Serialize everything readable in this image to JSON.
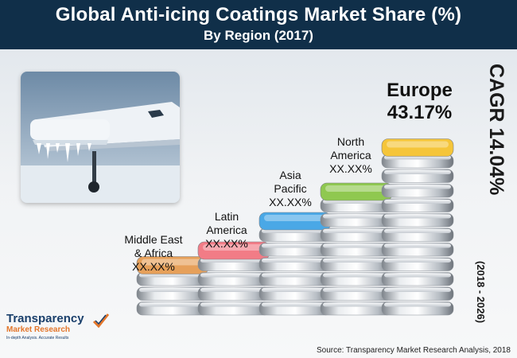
{
  "header": {
    "title": "Global Anti-icing Coatings Market Share (%)",
    "subtitle": "By Region (2017)"
  },
  "cagr": {
    "label": "CAGR 14.04%",
    "period": "(2018 - 2026)"
  },
  "source": "Source: Transparency Market Research Analysis, 2018",
  "logo": {
    "name_line1": "Transparency",
    "name_line2": "Market Research",
    "tagline": "In-depth Analysis. Accurate Results"
  },
  "chart_data": {
    "type": "bar",
    "title": "Global Anti-icing Coatings Market Share (%)",
    "subtitle": "By Region (2017)",
    "categories": [
      "Middle East & Africa",
      "Latin America",
      "Asia Pacific",
      "North America",
      "Europe"
    ],
    "category_lines": [
      [
        "Middle East",
        "& Africa"
      ],
      [
        "Latin",
        "America"
      ],
      [
        "Asia",
        "Pacific"
      ],
      [
        "North",
        "America"
      ],
      [
        "Europe"
      ]
    ],
    "value_labels": [
      "XX.XX%",
      "XX.XX%",
      "XX.XX%",
      "XX.XX%",
      "43.17%"
    ],
    "values": [
      null,
      null,
      null,
      null,
      43.17
    ],
    "stack_levels": [
      3,
      4,
      6,
      8,
      11
    ],
    "cap_colors": [
      "#e6a05a",
      "#f27c86",
      "#4aa8e6",
      "#8fc850",
      "#f5c53a"
    ],
    "highlight_index": 4
  }
}
